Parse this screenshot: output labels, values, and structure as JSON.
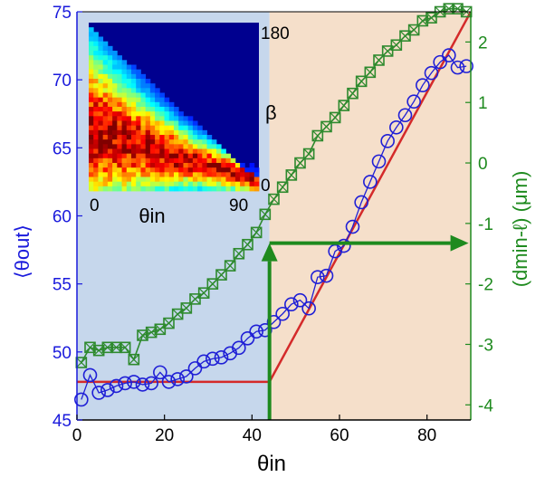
{
  "chart_data": {
    "type": "scatter",
    "xlabel": "θin",
    "ylabel_left": "⟨θout⟩",
    "ylabel_right": "(dmin-ℓ) (μm)",
    "xlim": [
      0,
      90
    ],
    "ylim_left": [
      45,
      75
    ],
    "ylim_right": [
      -4.25,
      2.5
    ],
    "x_ticks": [
      0,
      20,
      40,
      60,
      80
    ],
    "y_ticks_left": [
      45,
      50,
      55,
      60,
      65,
      70,
      75
    ],
    "y_ticks_right": [
      -4,
      -3,
      -2,
      -1,
      0,
      1,
      2
    ],
    "grid": false,
    "regions": [
      {
        "x": [
          0,
          44
        ],
        "color": "#c6d7ec"
      },
      {
        "x": [
          44,
          90
        ],
        "color": "#f5dfca"
      }
    ],
    "series": [
      {
        "axis": "left",
        "marker": "circle",
        "color": "#1f1fd6",
        "x": [
          1,
          3,
          5,
          7,
          9,
          11,
          13,
          15,
          17,
          19,
          21,
          23,
          25,
          27,
          29,
          31,
          33,
          35,
          37,
          39,
          41,
          43,
          45,
          47,
          49,
          51,
          53,
          55,
          57,
          59,
          61,
          63,
          65,
          67,
          69,
          71,
          73,
          75,
          77,
          79,
          81,
          83,
          85,
          87,
          89
        ],
        "y": [
          46.5,
          48.3,
          47.0,
          47.2,
          47.5,
          47.7,
          47.8,
          47.6,
          47.7,
          48.5,
          47.8,
          48.0,
          48.2,
          48.8,
          49.3,
          49.5,
          49.6,
          49.9,
          50.3,
          51.0,
          51.5,
          51.6,
          52.2,
          52.8,
          53.5,
          53.8,
          53.2,
          55.5,
          55.6,
          57.4,
          57.8,
          59.2,
          61.0,
          62.5,
          64.0,
          65.5,
          66.5,
          67.4,
          68.4,
          69.6,
          70.5,
          71.3,
          71.8,
          70.9,
          71.0
        ]
      },
      {
        "axis": "right",
        "marker": "square",
        "color": "#2e8a2e",
        "x": [
          1,
          3,
          5,
          7,
          9,
          11,
          13,
          15,
          17,
          19,
          21,
          23,
          25,
          27,
          29,
          31,
          33,
          35,
          37,
          39,
          41,
          43,
          45,
          47,
          49,
          51,
          53,
          55,
          57,
          59,
          61,
          63,
          65,
          67,
          69,
          71,
          73,
          75,
          77,
          79,
          81,
          83,
          85,
          87,
          89
        ],
        "y": [
          -3.3,
          -3.05,
          -3.1,
          -3.05,
          -3.05,
          -3.05,
          -3.25,
          -2.85,
          -2.8,
          -2.75,
          -2.65,
          -2.5,
          -2.4,
          -2.25,
          -2.15,
          -2.0,
          -1.85,
          -1.7,
          -1.5,
          -1.35,
          -1.15,
          -0.85,
          -0.6,
          -0.4,
          -0.2,
          0.0,
          0.15,
          0.45,
          0.6,
          0.75,
          0.95,
          1.15,
          1.35,
          1.5,
          1.7,
          1.85,
          1.95,
          2.1,
          2.2,
          2.35,
          2.4,
          2.5,
          2.55,
          2.55,
          2.5
        ]
      },
      {
        "axis": "left",
        "type": "line",
        "color": "#d42a2a",
        "x": [
          0,
          44,
          44,
          90
        ],
        "y": [
          47.8,
          47.8,
          47.8,
          75
        ]
      }
    ],
    "arrows": [
      {
        "color": "#1e8a1e",
        "from": [
          44,
          45
        ],
        "to": [
          44,
          58
        ]
      },
      {
        "color": "#1e8a1e",
        "from": [
          44,
          58
        ],
        "to": [
          89.5,
          58
        ]
      }
    ],
    "inset": {
      "type": "heatmap",
      "xlabel": "θin",
      "ylabel": "β",
      "x_ticks": [
        "0",
        "90"
      ],
      "y_ticks": [
        "180",
        "0"
      ],
      "xlim": [
        0,
        90
      ],
      "ylim": [
        0,
        180
      ],
      "colormap": "jet"
    }
  }
}
